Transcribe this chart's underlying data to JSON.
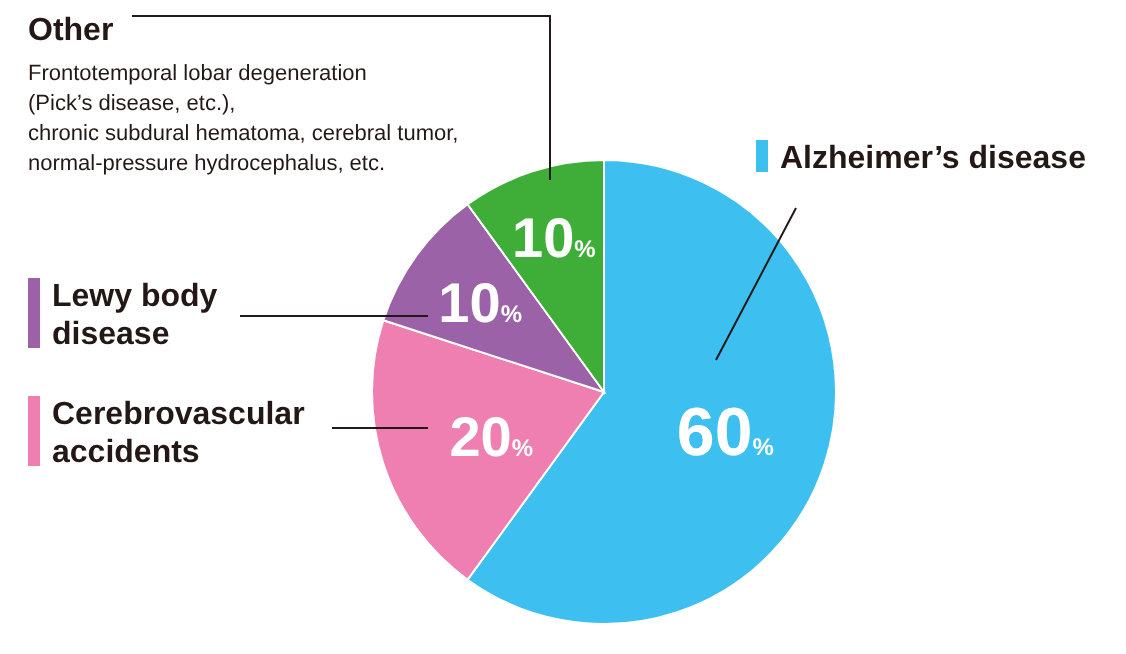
{
  "chart_data": {
    "type": "pie",
    "categories": [
      "Alzheimer’s disease",
      "Cerebrovascular accidents",
      "Lewy body disease",
      "Other"
    ],
    "values": [
      60,
      20,
      10,
      10
    ],
    "colors": [
      "#3dbfef",
      "#ee7fb0",
      "#9c62a8",
      "#3fae38"
    ],
    "value_labels": [
      "60%",
      "20%",
      "10%",
      "10%"
    ],
    "annotations": [
      "Frontotemporal lobar degeneration\n(Pick’s disease, etc.),\nchronic subdural hematoma, cerebral tumor,\nnormal-pressure hydrocephalus, etc."
    ],
    "legend": "left"
  }
}
